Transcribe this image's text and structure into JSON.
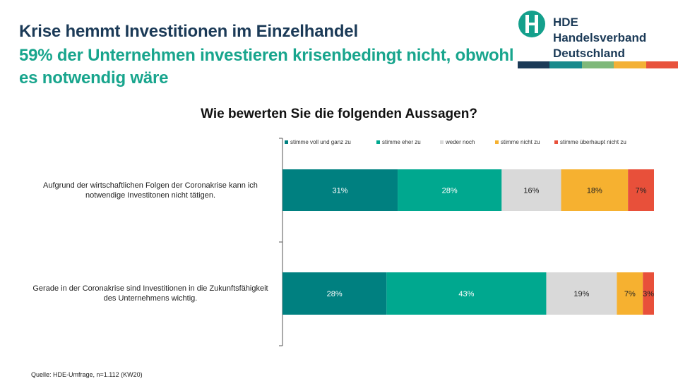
{
  "header": {
    "title": "Krise hemmt Investitionen im Einzelhandel",
    "subtitle": "59% der Unternehmen investieren krisenbedingt nicht, obwohl es notwendig wäre"
  },
  "logo": {
    "line1": "HDE",
    "line2": "Handelsverband",
    "line3": "Deutschland",
    "stripe_colors": [
      "#1b3a57",
      "#178a8c",
      "#7fb87a",
      "#f3b136",
      "#e8523c"
    ]
  },
  "chart_data": {
    "type": "bar",
    "orientation": "horizontal",
    "stacked": true,
    "percent": true,
    "title": "Wie bewerten Sie die folgenden Aussagen?",
    "categories": [
      "Aufgrund der wirtschaftlichen Folgen der Coronakrise kann ich notwendige Investitonen nicht tätigen.",
      "Gerade in der Coronakrise sind Investitionen in die Zukunftsfähigkeit des Unternehmens wichtig."
    ],
    "series": [
      {
        "name": "stimme voll und ganz zu",
        "color": "#008080",
        "values": [
          31,
          28
        ],
        "labels": [
          "31%",
          "28%"
        ]
      },
      {
        "name": "stimme eher zu",
        "color": "#00a88f",
        "values": [
          28,
          43
        ],
        "labels": [
          "28%",
          "43%"
        ]
      },
      {
        "name": "weder noch",
        "color": "#d9d9d9",
        "values": [
          16,
          19
        ],
        "labels": [
          "16%",
          "19%"
        ]
      },
      {
        "name": "stimme nicht zu",
        "color": "#f6b130",
        "values": [
          18,
          7
        ],
        "labels": [
          "18%",
          "7%"
        ]
      },
      {
        "name": "stimme überhaupt nicht zu",
        "color": "#e8503a",
        "values": [
          7,
          3
        ],
        "labels": [
          "7%",
          "3%"
        ]
      }
    ],
    "legend_position": "top",
    "grid": false
  },
  "source": "Quelle: HDE-Umfrage, n=1.112 (KW20)"
}
